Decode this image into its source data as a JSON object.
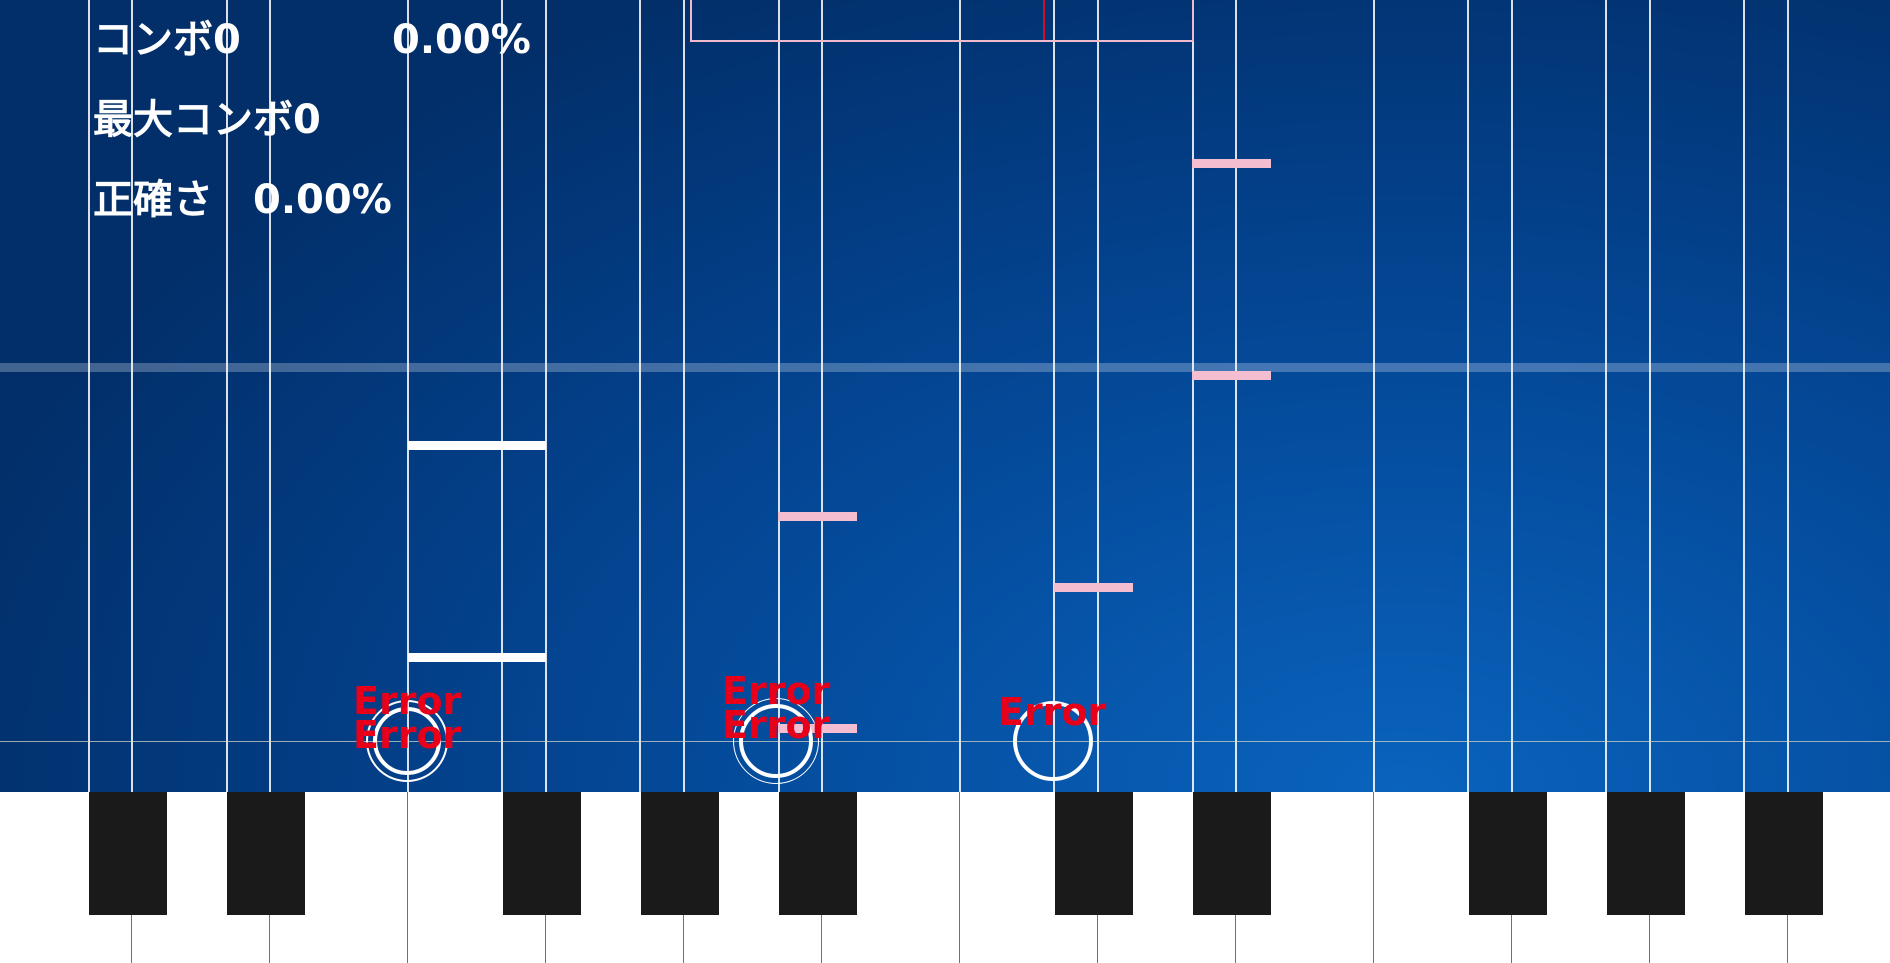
{
  "hud": {
    "combo_label": "コンボ",
    "combo_value": "0",
    "percent_top": "0.00%",
    "max_combo_label": "最大コンボ",
    "max_combo_value": "0",
    "accuracy_label": "正確さ",
    "accuracy_value": "0.00%"
  },
  "progress": {
    "position_fraction": 0.7
  },
  "judgements": [
    "Error",
    "Error",
    "Error",
    "Error",
    "Error"
  ],
  "colors": {
    "background_dark": "#022f6a",
    "background_light": "#0a63bd",
    "note_white": "#ffffff",
    "note_pink": "#f4bdd0",
    "error_text": "#e8001a",
    "progress_marker": "#d0102a",
    "black_key": "#1a1a1a"
  }
}
